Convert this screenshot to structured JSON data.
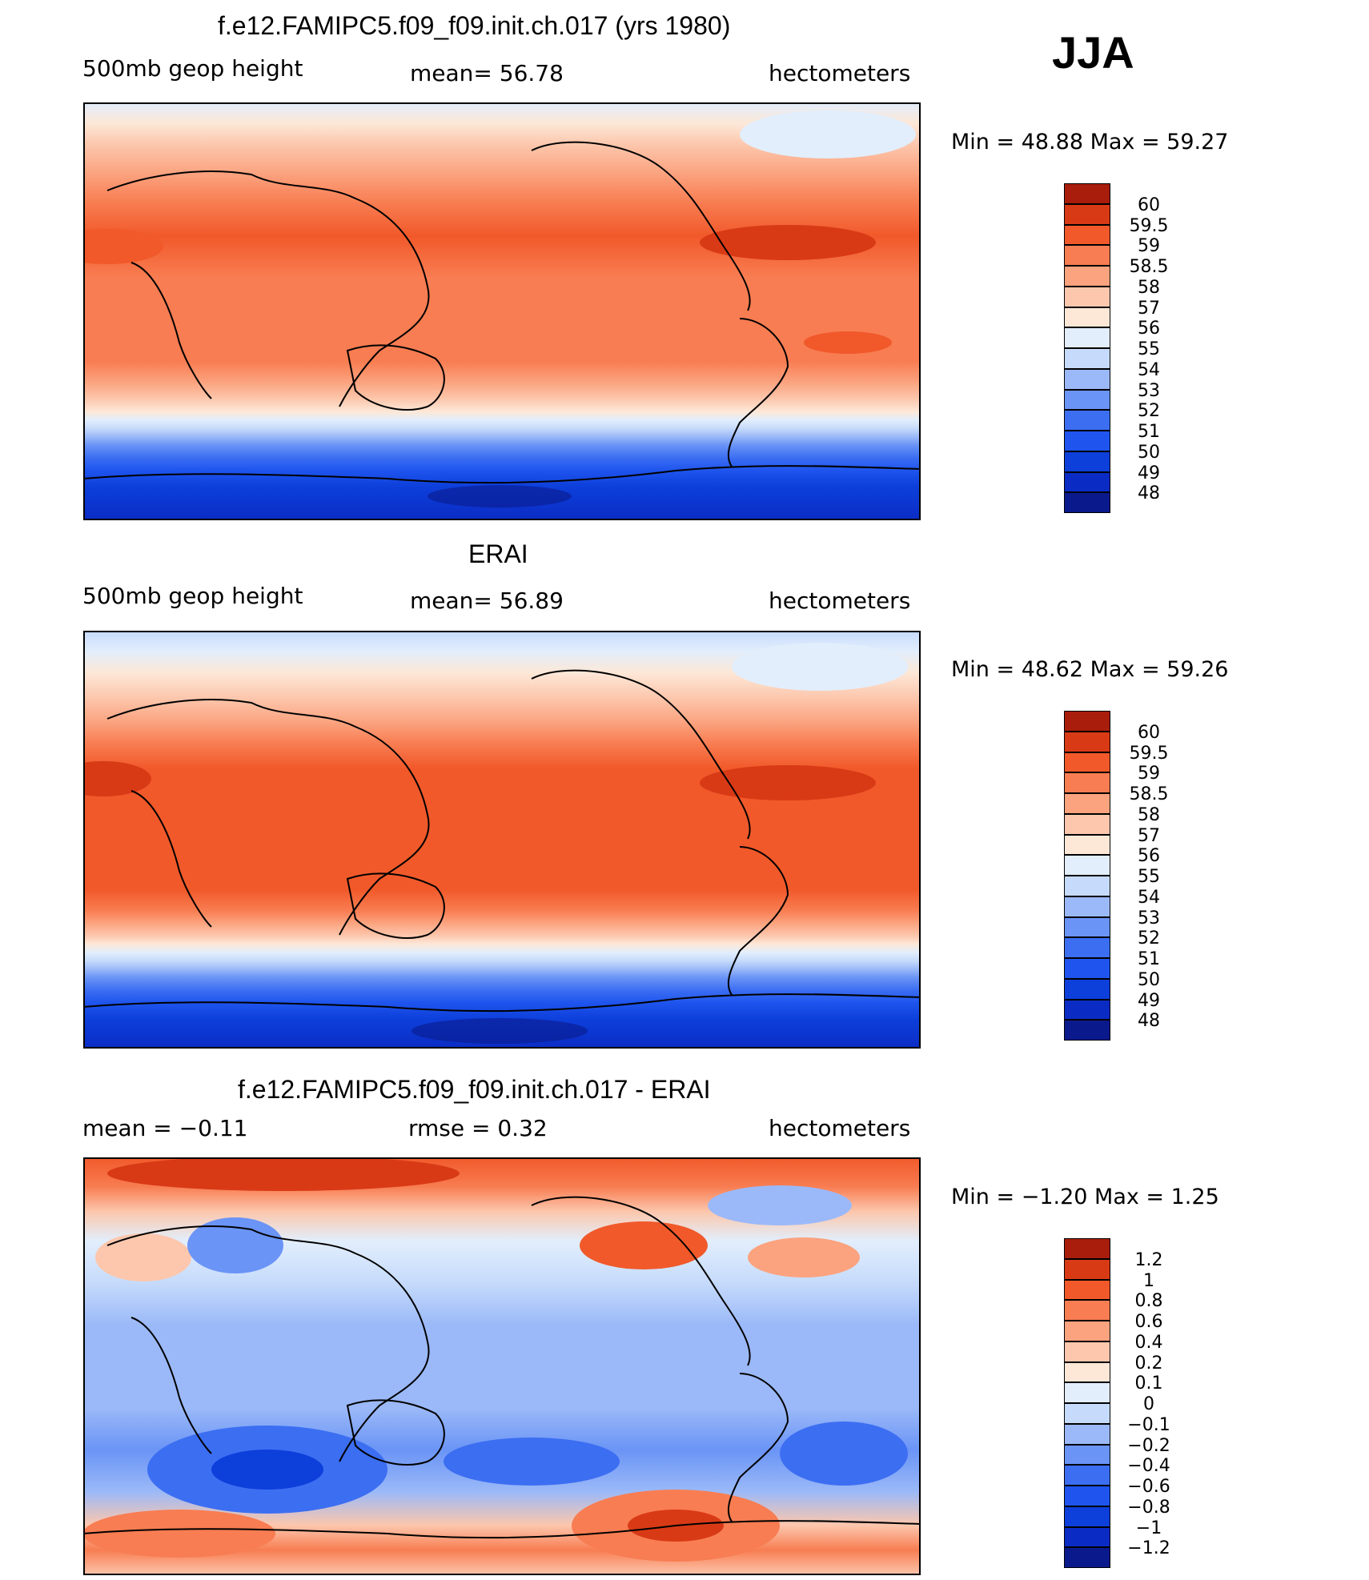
{
  "season": "JJA",
  "panels": [
    {
      "id": "model",
      "title": "f.e12.FAMIPC5.f09_f09.init.ch.017 (yrs 1980)",
      "left_label": "500mb geop height",
      "center_label": "mean=   56.78",
      "right_label": "hectometers",
      "minmax_label": "Min =   48.88  Max =   59.27",
      "colorbar_labels": [
        "60",
        "59.5",
        "59",
        "58.5",
        "58",
        "57",
        "56",
        "55",
        "54",
        "53",
        "52",
        "51",
        "50",
        "49",
        "48"
      ]
    },
    {
      "id": "obs",
      "title": "ERAI",
      "left_label": "500mb geop height",
      "center_label": "mean=   56.89",
      "right_label": "hectometers",
      "minmax_label": "Min =   48.62  Max =   59.26",
      "colorbar_labels": [
        "60",
        "59.5",
        "59",
        "58.5",
        "58",
        "57",
        "56",
        "55",
        "54",
        "53",
        "52",
        "51",
        "50",
        "49",
        "48"
      ]
    },
    {
      "id": "diff",
      "title": "f.e12.FAMIPC5.f09_f09.init.ch.017 - ERAI",
      "left_label": "mean =    −0.11",
      "center_label": "rmse =     0.32",
      "right_label": "hectometers",
      "minmax_label": "Min =   −1.20  Max =     1.25",
      "colorbar_labels": [
        "1.2",
        "1",
        "0.8",
        "0.6",
        "0.4",
        "0.2",
        "0.1",
        "0",
        "−0.1",
        "−0.2",
        "−0.4",
        "−0.6",
        "−0.8",
        "−1",
        "−1.2"
      ]
    }
  ],
  "chart_data": [
    {
      "type": "heatmap",
      "title": "f.e12.FAMIPC5.f09_f09.init.ch.017 (yrs 1980)",
      "variable": "500mb geop height",
      "units": "hectometers",
      "mean": 56.78,
      "min": 48.88,
      "max": 59.27,
      "contour_levels": [
        48,
        49,
        50,
        51,
        52,
        53,
        54,
        55,
        56,
        57,
        58,
        58.5,
        59,
        59.5,
        60
      ],
      "colors": [
        "#0a1a8c",
        "#0b2cc4",
        "#0d3fdb",
        "#1f55ee",
        "#3c6ef2",
        "#6a94f6",
        "#9bb9f8",
        "#c6dbfb",
        "#e2eefc",
        "#fde8d8",
        "#fcc7ad",
        "#fba37f",
        "#f87d52",
        "#f1592a",
        "#d93a16",
        "#a81d0c"
      ]
    },
    {
      "type": "heatmap",
      "title": "ERAI",
      "variable": "500mb geop height",
      "units": "hectometers",
      "mean": 56.89,
      "min": 48.62,
      "max": 59.26,
      "contour_levels": [
        48,
        49,
        50,
        51,
        52,
        53,
        54,
        55,
        56,
        57,
        58,
        58.5,
        59,
        59.5,
        60
      ],
      "colors": [
        "#0a1a8c",
        "#0b2cc4",
        "#0d3fdb",
        "#1f55ee",
        "#3c6ef2",
        "#6a94f6",
        "#9bb9f8",
        "#c6dbfb",
        "#e2eefc",
        "#fde8d8",
        "#fcc7ad",
        "#fba37f",
        "#f87d52",
        "#f1592a",
        "#d93a16",
        "#a81d0c"
      ]
    },
    {
      "type": "heatmap",
      "title": "f.e12.FAMIPC5.f09_f09.init.ch.017 - ERAI",
      "units": "hectometers",
      "mean": -0.11,
      "rmse": 0.32,
      "min": -1.2,
      "max": 1.25,
      "contour_levels": [
        -1.2,
        -1,
        -0.8,
        -0.6,
        -0.4,
        -0.2,
        -0.1,
        0,
        0.1,
        0.2,
        0.4,
        0.6,
        0.8,
        1,
        1.2
      ],
      "colors": [
        "#0a1a8c",
        "#0b2cc4",
        "#0d3fdb",
        "#1f55ee",
        "#3c6ef2",
        "#6a94f6",
        "#9bb9f8",
        "#c6dbfb",
        "#e2eefc",
        "#fde8d8",
        "#fcc7ad",
        "#fba37f",
        "#f87d52",
        "#f1592a",
        "#d93a16",
        "#a81d0c"
      ]
    }
  ]
}
